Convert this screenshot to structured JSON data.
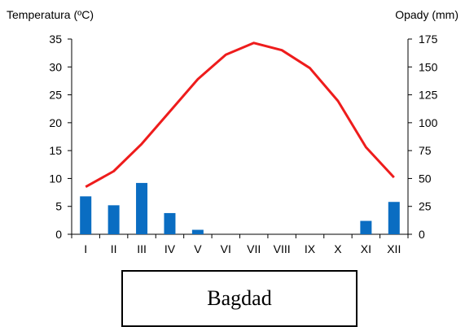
{
  "chart_data": {
    "type": "climate",
    "title": "",
    "left_axis_label": "Temperatura (ºC)",
    "right_axis_label": "Opady (mm)",
    "categories": [
      "I",
      "II",
      "III",
      "IV",
      "V",
      "VI",
      "VII",
      "VIII",
      "IX",
      "X",
      "XI",
      "XII"
    ],
    "left_ticks": [
      "0",
      "5",
      "10",
      "15",
      "20",
      "25",
      "30",
      "35"
    ],
    "right_ticks": [
      "0",
      "25",
      "50",
      "75",
      "100",
      "125",
      "150",
      "175"
    ],
    "left_ylim": [
      0,
      35
    ],
    "right_ylim": [
      0,
      175
    ],
    "temperature": [
      8.5,
      11.3,
      16.2,
      22.0,
      27.8,
      32.2,
      34.3,
      33.0,
      29.8,
      23.9,
      15.6,
      10.2
    ],
    "precipitation": [
      34,
      26,
      46,
      19,
      4,
      0,
      0,
      0,
      0,
      0,
      12,
      29
    ],
    "line_color": "#ee1c1c",
    "bar_color": "#0a6dc2",
    "grid": false
  },
  "station": {
    "name": "Bagdad"
  }
}
